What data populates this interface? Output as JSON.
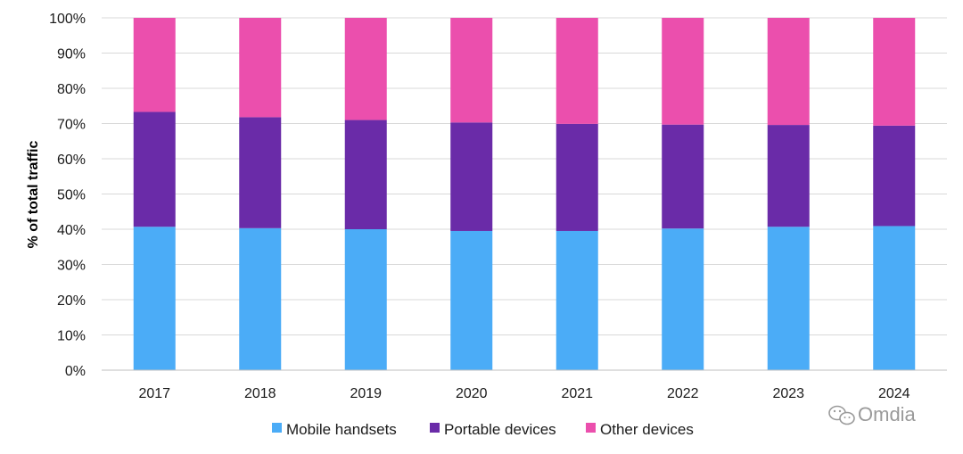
{
  "chart_data": {
    "type": "bar",
    "stacked": true,
    "categories": [
      "2017",
      "2018",
      "2019",
      "2020",
      "2021",
      "2022",
      "2023",
      "2024"
    ],
    "series": [
      {
        "name": "Mobile handsets",
        "color": "#4BACF7",
        "values": [
          40.7,
          40.3,
          40.0,
          39.5,
          39.5,
          40.2,
          40.7,
          40.9
        ]
      },
      {
        "name": "Portable devices",
        "color": "#6A2BA8",
        "values": [
          32.6,
          31.5,
          31.0,
          30.8,
          30.4,
          29.5,
          28.9,
          28.5
        ]
      },
      {
        "name": "Other devices",
        "color": "#EB4FAD",
        "values": [
          26.7,
          28.2,
          29.0,
          29.7,
          30.1,
          30.3,
          30.4,
          30.6
        ]
      }
    ],
    "ylabel": "% of total traffic",
    "xlabel": "",
    "ylim": [
      0,
      100
    ],
    "yticks": [
      "0%",
      "10%",
      "20%",
      "30%",
      "40%",
      "50%",
      "60%",
      "70%",
      "80%",
      "90%",
      "100%"
    ],
    "grid": true,
    "legend_position": "bottom"
  },
  "watermark": {
    "text": "Omdia",
    "icon": "wechat-icon"
  }
}
